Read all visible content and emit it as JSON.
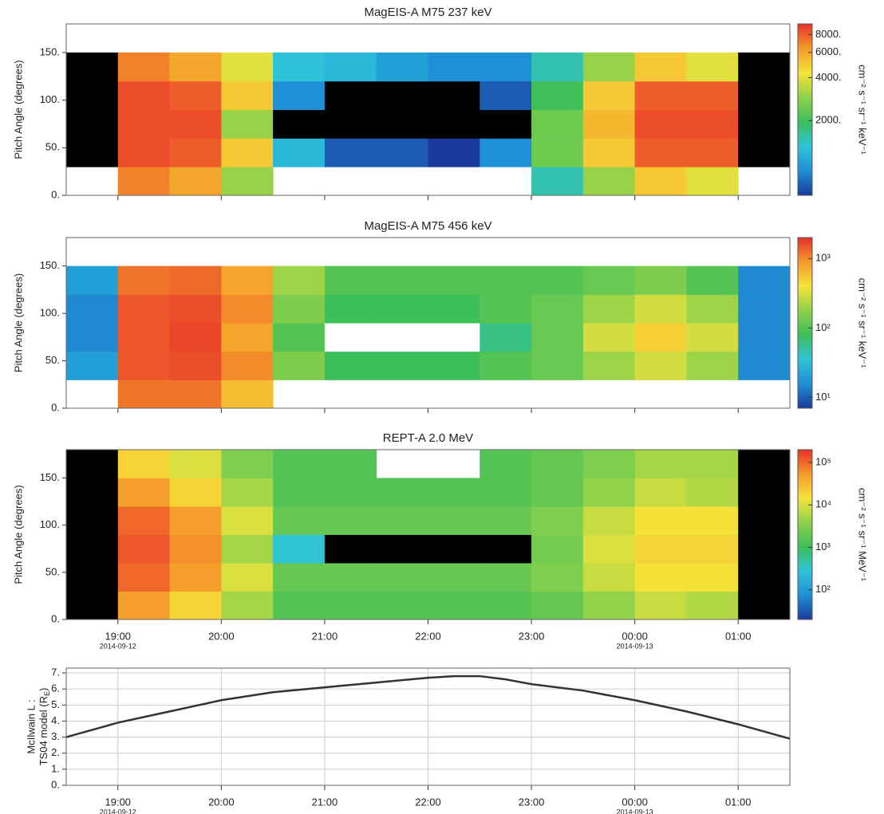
{
  "chart_data": [
    {
      "type": "heatmap",
      "title": "MagEIS-A M75 237 keV",
      "ylabel": "Pitch Angle (degrees)",
      "colorbar_label": "cm⁻² s⁻¹ sr⁻¹ keV⁻¹",
      "log_color": true,
      "clim": [
        600,
        9500
      ],
      "below_color": "#000000",
      "colorbar_ticks": [
        {
          "value": 2000,
          "label": "2000."
        },
        {
          "value": 4000,
          "label": "4000."
        },
        {
          "value": 6000,
          "label": "6000."
        },
        {
          "value": 8000,
          "label": "8000."
        }
      ],
      "colormap": [
        "#1a3a9c",
        "#1f8fd6",
        "#2ec4d8",
        "#3cbf5a",
        "#8fd14a",
        "#f5e43a",
        "#f59a2a",
        "#e8302a"
      ],
      "xlim": [
        18.5,
        25.5
      ],
      "xticks": [
        19,
        20,
        21,
        22,
        23,
        24,
        25
      ],
      "ylim": [
        0,
        180
      ],
      "yticks": [
        {
          "value": 0,
          "label": "0."
        },
        {
          "value": 50,
          "label": "50."
        },
        {
          "value": 100,
          "label": "100."
        },
        {
          "value": 150,
          "label": "150."
        }
      ],
      "xbins": [
        18.5,
        19,
        19.5,
        20,
        20.5,
        21,
        21.5,
        22,
        22.5,
        23,
        23.5,
        24,
        24.5,
        25,
        25.5
      ],
      "ybins": [
        0,
        30,
        60,
        90,
        120,
        150,
        180
      ],
      "z": [
        [
          null,
          300,
          300,
          300,
          300,
          null
        ],
        [
          7000,
          8500,
          8500,
          8500,
          7000,
          null
        ],
        [
          6000,
          8000,
          8500,
          8000,
          6000,
          null
        ],
        [
          3000,
          5000,
          3000,
          5000,
          4000,
          null
        ],
        [
          null,
          1200,
          400,
          900,
          1300,
          null
        ],
        [
          null,
          700,
          300,
          300,
          1200,
          null
        ],
        [
          null,
          700,
          300,
          300,
          1000,
          null
        ],
        [
          null,
          600,
          300,
          300,
          900,
          null
        ],
        [
          null,
          900,
          500,
          700,
          900,
          null
        ],
        [
          1500,
          2500,
          2500,
          2000,
          1500,
          null
        ],
        [
          3000,
          5000,
          5500,
          5000,
          3000,
          null
        ],
        [
          5000,
          8000,
          8500,
          8000,
          5000,
          null
        ],
        [
          4000,
          8000,
          8500,
          8000,
          4000,
          null
        ],
        [
          null,
          300,
          300,
          300,
          300,
          null
        ]
      ]
    },
    {
      "type": "heatmap",
      "title": "MagEIS-A M75 456 keV",
      "ylabel": "Pitch Angle (degrees)",
      "colorbar_label": "cm⁻² s⁻¹ sr⁻¹ keV⁻¹",
      "log_color": true,
      "clim": [
        7,
        2000
      ],
      "below_color": "#ffffff",
      "colorbar_ticks": [
        {
          "value": 10,
          "label": "10¹"
        },
        {
          "value": 100,
          "label": "10²"
        },
        {
          "value": 1000,
          "label": "10³"
        }
      ],
      "colormap": [
        "#1a3a9c",
        "#1f8fd6",
        "#2ec4d8",
        "#3cbf5a",
        "#8fd14a",
        "#f5e43a",
        "#f59a2a",
        "#e8302a"
      ],
      "xlim": [
        18.5,
        25.5
      ],
      "xticks": [
        19,
        20,
        21,
        22,
        23,
        24,
        25
      ],
      "ylim": [
        0,
        180
      ],
      "yticks": [
        {
          "value": 0,
          "label": "0."
        },
        {
          "value": 50,
          "label": "50."
        },
        {
          "value": 100,
          "label": "100."
        },
        {
          "value": 150,
          "label": "150."
        }
      ],
      "xbins": [
        18.5,
        19,
        19.5,
        20,
        20.5,
        21,
        21.5,
        22,
        22.5,
        23,
        23.5,
        24,
        24.5,
        25,
        25.5
      ],
      "ybins": [
        0,
        30,
        60,
        90,
        120,
        150,
        180
      ],
      "z": [
        [
          null,
          20,
          15,
          15,
          20,
          null
        ],
        [
          1200,
          1500,
          1500,
          1500,
          1200,
          null
        ],
        [
          1200,
          1600,
          1700,
          1600,
          1300,
          null
        ],
        [
          600,
          1000,
          800,
          1000,
          800,
          null
        ],
        [
          null,
          150,
          100,
          150,
          200,
          null
        ],
        [
          null,
          80,
          5,
          80,
          100,
          null
        ],
        [
          null,
          80,
          5,
          80,
          100,
          null
        ],
        [
          null,
          80,
          5,
          80,
          100,
          null
        ],
        [
          null,
          100,
          60,
          100,
          100,
          null
        ],
        [
          null,
          120,
          120,
          120,
          100,
          null
        ],
        [
          null,
          200,
          300,
          200,
          120,
          null
        ],
        [
          null,
          300,
          500,
          300,
          150,
          null
        ],
        [
          null,
          200,
          300,
          200,
          100,
          null
        ],
        [
          null,
          15,
          15,
          15,
          15,
          null
        ]
      ]
    },
    {
      "type": "heatmap",
      "title": "REPT-A 2.0 MeV",
      "ylabel": "Pitch Angle (degrees)",
      "colorbar_label": "cm⁻² s⁻¹ sr⁻¹ MeV⁻¹",
      "log_color": true,
      "clim": [
        20,
        200000
      ],
      "below_color": "#000000",
      "colorbar_ticks": [
        {
          "value": 100,
          "label": "10²"
        },
        {
          "value": 1000,
          "label": "10³"
        },
        {
          "value": 10000,
          "label": "10⁴"
        },
        {
          "value": 100000,
          "label": "10⁵"
        }
      ],
      "colormap": [
        "#1a3a9c",
        "#1f8fd6",
        "#2ec4d8",
        "#3cbf5a",
        "#8fd14a",
        "#f5e43a",
        "#f59a2a",
        "#e8302a"
      ],
      "xlim": [
        18.5,
        25.5
      ],
      "xticks": [
        {
          "value": 19,
          "label": "19:00",
          "date": "2014-09-12"
        },
        {
          "value": 20,
          "label": "20:00"
        },
        {
          "value": 21,
          "label": "21:00"
        },
        {
          "value": 22,
          "label": "22:00"
        },
        {
          "value": 23,
          "label": "23:00"
        },
        {
          "value": 24,
          "label": "00:00",
          "date": "2014-09-13"
        },
        {
          "value": 25,
          "label": "01:00"
        }
      ],
      "ylim": [
        0,
        180
      ],
      "yticks": [
        {
          "value": 0,
          "label": "0."
        },
        {
          "value": 50,
          "label": "50."
        },
        {
          "value": 100,
          "label": "100."
        },
        {
          "value": 150,
          "label": "150."
        }
      ],
      "xbins": [
        18.5,
        19,
        19.5,
        20,
        20.5,
        21,
        21.5,
        22,
        22.5,
        23,
        23.5,
        24,
        24.5,
        25,
        25.5
      ],
      "ybins": [
        0,
        30,
        60,
        90,
        120,
        150,
        180
      ],
      "z": [
        [
          10,
          10,
          10,
          10,
          10,
          10
        ],
        [
          50000,
          100000,
          120000,
          100000,
          50000,
          20000
        ],
        [
          20000,
          50000,
          60000,
          50000,
          20000,
          10000
        ],
        [
          5000,
          10000,
          5000,
          10000,
          5000,
          3000
        ],
        [
          1500,
          2000,
          300,
          2000,
          1500,
          1500
        ],
        [
          1500,
          2000,
          10,
          2000,
          1500,
          1500
        ],
        [
          1500,
          2000,
          10,
          2000,
          1500,
          null
        ],
        [
          1500,
          2000,
          10,
          2000,
          1500,
          null
        ],
        [
          1500,
          2000,
          10,
          2000,
          1500,
          1500
        ],
        [
          2000,
          3000,
          2500,
          3000,
          2000,
          2000
        ],
        [
          4000,
          8000,
          10000,
          8000,
          4000,
          3000
        ],
        [
          8000,
          15000,
          20000,
          15000,
          8000,
          5000
        ],
        [
          6000,
          15000,
          20000,
          15000,
          6000,
          5000
        ],
        [
          10,
          10,
          10,
          10,
          10,
          10
        ]
      ]
    },
    {
      "type": "line",
      "ylabel_lines": [
        "McIlwain L :",
        "TS04 model (R"
      ],
      "ylabel_sub": "E",
      "ylabel_end": ")",
      "grid": true,
      "xlim": [
        18.5,
        25.5
      ],
      "xticks": [
        {
          "value": 19,
          "label": "19:00",
          "date": "2014-09-12"
        },
        {
          "value": 20,
          "label": "20:00"
        },
        {
          "value": 21,
          "label": "21:00"
        },
        {
          "value": 22,
          "label": "22:00"
        },
        {
          "value": 23,
          "label": "23:00"
        },
        {
          "value": 24,
          "label": "00:00",
          "date": "2014-09-13"
        },
        {
          "value": 25,
          "label": "01:00"
        }
      ],
      "ylim": [
        0,
        7.3
      ],
      "yticks": [
        {
          "value": 0,
          "label": "0."
        },
        {
          "value": 1,
          "label": "1."
        },
        {
          "value": 2,
          "label": "2."
        },
        {
          "value": 3,
          "label": "3."
        },
        {
          "value": 4,
          "label": "4."
        },
        {
          "value": 5,
          "label": "5."
        },
        {
          "value": 6,
          "label": "6."
        },
        {
          "value": 7,
          "label": "7."
        }
      ],
      "x": [
        18.5,
        19,
        19.5,
        20,
        20.5,
        21,
        21.5,
        22,
        22.25,
        22.5,
        22.75,
        23,
        23.5,
        24,
        24.5,
        25,
        25.5
      ],
      "series": [
        {
          "color": "#333333",
          "values": [
            3.0,
            3.9,
            4.6,
            5.3,
            5.8,
            6.1,
            6.4,
            6.7,
            6.8,
            6.8,
            6.6,
            6.3,
            5.9,
            5.3,
            4.6,
            3.8,
            2.9
          ]
        }
      ]
    }
  ]
}
